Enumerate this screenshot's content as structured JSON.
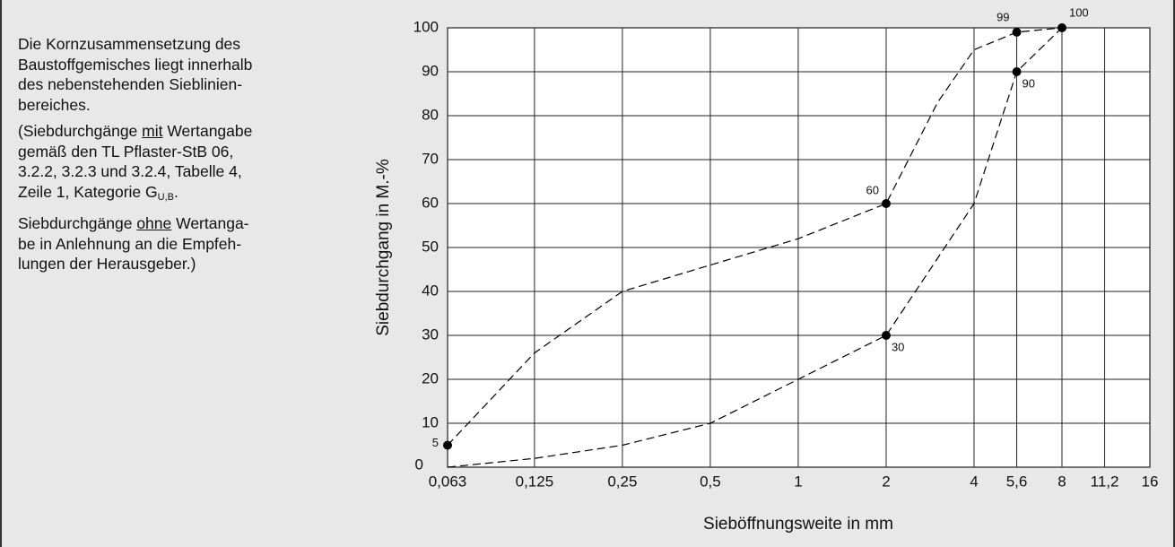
{
  "notes": [
    [
      [
        "Die Kornzusammensetzung des"
      ],
      [
        "Baustoffgemisches liegt innerhalb"
      ],
      [
        "des nebenstehenden Sieblinien-"
      ],
      [
        "bereiches."
      ]
    ],
    [
      [
        "(Siebdurchgänge ",
        {
          "text": "mit",
          "style": "underline"
        },
        " Wertangabe"
      ],
      [
        "gemäß den TL Pflaster-StB 06,"
      ],
      [
        "3.2.2, 3.2.3 und 3.2.4, Tabelle 4,"
      ],
      [
        "Zeile 1, Kategorie G",
        {
          "text": "U,B",
          "style": "subscript"
        },
        "."
      ]
    ],
    [
      [
        "Siebdurchgänge ",
        {
          "text": "ohne",
          "style": "underline"
        },
        " Wertanga-"
      ],
      [
        "be in Anlehnung an die Empfeh-"
      ],
      [
        "lungen der Herausgeber.)"
      ]
    ]
  ],
  "chart_data": {
    "type": "line",
    "xlabel": "Sieböffnungsweite in mm",
    "ylabel": "Siebdurchgang in M.-%",
    "xscale": "log",
    "xlim": [
      0.063,
      16
    ],
    "ylim": [
      0,
      100
    ],
    "grid": true,
    "xticks": [
      {
        "value": 0.063,
        "label": "0,063"
      },
      {
        "value": 0.125,
        "label": "0,125"
      },
      {
        "value": 0.25,
        "label": "0,25"
      },
      {
        "value": 0.5,
        "label": "0,5"
      },
      1,
      2,
      4,
      {
        "value": 5.6,
        "label": "5,6"
      },
      8,
      {
        "value": 11.2,
        "label": "11,2"
      },
      16
    ],
    "yticks": [
      0,
      10,
      20,
      30,
      40,
      50,
      60,
      70,
      80,
      90,
      100
    ],
    "series": [
      {
        "color": "#000000",
        "x": [
          0.063,
          0.125,
          0.25,
          0.5,
          1,
          2,
          3,
          4,
          5.6,
          8
        ],
        "values": [
          5,
          26,
          40,
          46,
          52,
          60,
          83,
          95,
          99,
          100
        ]
      },
      {
        "color": "#000000",
        "x": [
          0.063,
          0.125,
          0.25,
          0.5,
          1,
          2,
          4,
          5.6,
          8
        ],
        "values": [
          0,
          2,
          5,
          10,
          20,
          30,
          60,
          90,
          100
        ]
      }
    ],
    "points": [
      {
        "x": 0.063,
        "y": 5
      },
      {
        "x": 2,
        "y": 60
      },
      {
        "x": 5.6,
        "y": 99
      },
      {
        "x": 8,
        "y": 100
      },
      {
        "x": 2,
        "y": 30
      },
      {
        "x": 5.6,
        "y": 90
      }
    ]
  }
}
